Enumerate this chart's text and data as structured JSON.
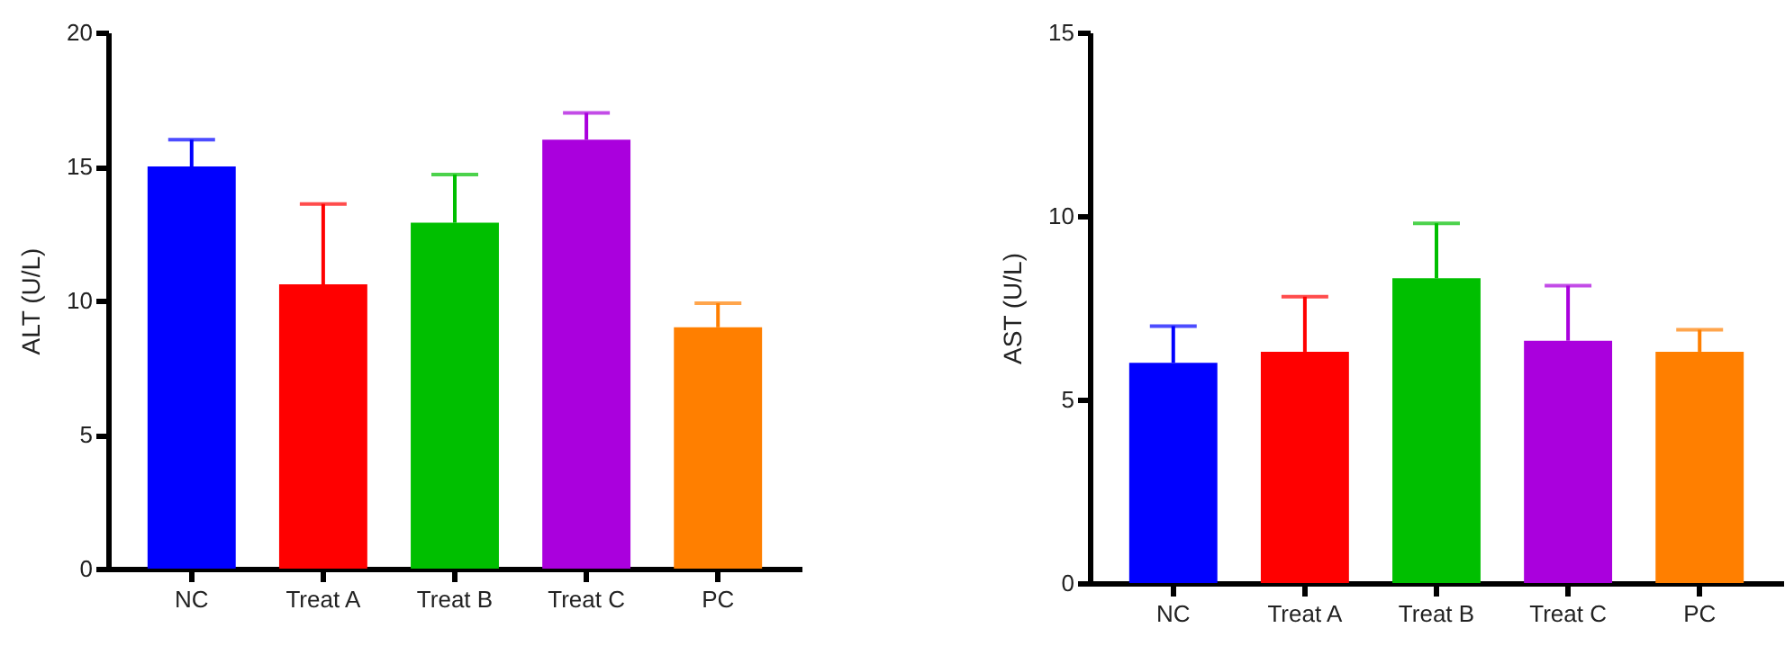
{
  "chart_data": [
    {
      "type": "bar",
      "ylabel": "ALT (U/L)",
      "categories": [
        "NC",
        "Treat A",
        "Treat B",
        "Treat C",
        "PC"
      ],
      "values": [
        15,
        10.6,
        12.9,
        16,
        9
      ],
      "colors": [
        "#0000ff",
        "#ff0000",
        "#00bf00",
        "#aa00dd",
        "#ff7f00"
      ],
      "errors": [
        [
          15,
          16
        ],
        [
          10.6,
          13.6
        ],
        [
          12.9,
          14.7
        ],
        [
          16,
          17
        ],
        [
          9,
          9.9
        ]
      ],
      "ylim": [
        0,
        20
      ],
      "yticks": [
        0,
        5,
        10,
        15,
        20
      ],
      "grid": false
    },
    {
      "type": "bar",
      "ylabel": "AST (U/L)",
      "categories": [
        "NC",
        "Treat A",
        "Treat B",
        "Treat C",
        "PC"
      ],
      "values": [
        6,
        6.3,
        8.3,
        6.6,
        6.3
      ],
      "colors": [
        "#0000ff",
        "#ff0000",
        "#00bf00",
        "#aa00dd",
        "#ff7f00"
      ],
      "errors": [
        [
          6,
          7
        ],
        [
          6.3,
          7.8
        ],
        [
          8.3,
          9.8
        ],
        [
          6.6,
          8.1
        ],
        [
          6.3,
          6.9
        ]
      ],
      "ylim": [
        0,
        15
      ],
      "yticks": [
        0,
        5,
        10,
        15
      ],
      "grid": false
    }
  ]
}
